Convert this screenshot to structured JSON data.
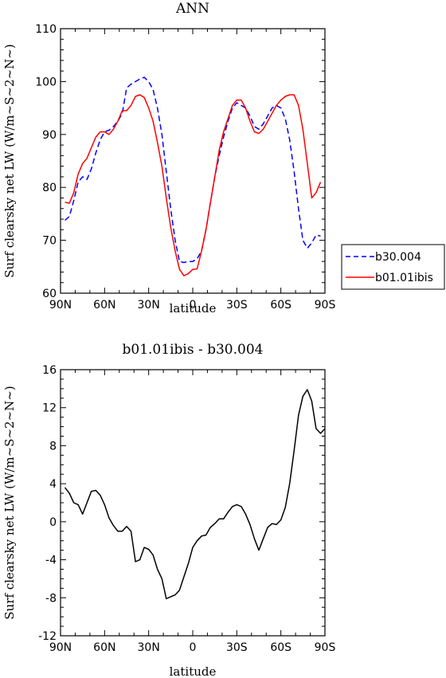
{
  "chart_data": [
    {
      "type": "line",
      "title": "ANN",
      "xlabel": "latitude",
      "ylabel": "Surf clearsky net LW (W/m~S~2~N~)",
      "x_tick_labels": [
        "90N",
        "60N",
        "30N",
        "0",
        "30S",
        "60S",
        "90S"
      ],
      "x_tick_values": [
        -90,
        -60,
        -30,
        0,
        30,
        60,
        90
      ],
      "xlim": [
        -90,
        90
      ],
      "ylim": [
        60,
        110
      ],
      "y_ticks": [
        60,
        70,
        80,
        90,
        100,
        110
      ],
      "legend_position": "right",
      "series": [
        {
          "name": "b30.004",
          "color": "#0000ff",
          "dash": "dashed",
          "x": [
            -87,
            -84,
            -81,
            -78,
            -75,
            -72,
            -69,
            -66,
            -63,
            -60,
            -57,
            -54,
            -51,
            -48,
            -45,
            -42,
            -39,
            -36,
            -33,
            -30,
            -27,
            -24,
            -21,
            -18,
            -15,
            -12,
            -9,
            -6,
            -3,
            0,
            3,
            6,
            9,
            12,
            15,
            18,
            21,
            24,
            27,
            30,
            33,
            36,
            39,
            42,
            45,
            48,
            51,
            54,
            57,
            60,
            63,
            66,
            69,
            72,
            75,
            78,
            81,
            84,
            87
          ],
          "y": [
            73.8,
            74.5,
            77.5,
            81,
            82,
            81.5,
            83.5,
            86.5,
            89,
            90.5,
            90.8,
            91.5,
            92.5,
            94,
            98.8,
            99.5,
            100,
            100.5,
            100.8,
            100,
            98.5,
            95,
            90,
            83,
            76,
            70,
            66,
            65.8,
            66,
            66,
            66.5,
            68,
            72,
            77,
            82,
            86,
            89.5,
            92.5,
            95,
            96,
            95.5,
            95,
            93.5,
            91.5,
            91,
            92,
            93.5,
            95,
            95.5,
            95,
            93,
            89,
            83,
            76,
            70,
            68.5,
            69.5,
            71,
            70.8
          ]
        },
        {
          "name": "b01.01ibis",
          "color": "#ff0000",
          "dash": "solid",
          "x": [
            -87,
            -84,
            -81,
            -78,
            -75,
            -72,
            -69,
            -66,
            -63,
            -60,
            -57,
            -54,
            -51,
            -48,
            -45,
            -42,
            -39,
            -36,
            -33,
            -30,
            -27,
            -24,
            -21,
            -18,
            -15,
            -12,
            -9,
            -6,
            -3,
            0,
            3,
            6,
            9,
            12,
            15,
            18,
            21,
            24,
            27,
            30,
            33,
            36,
            39,
            42,
            45,
            48,
            51,
            54,
            57,
            60,
            63,
            66,
            69,
            72,
            75,
            78,
            81,
            84,
            87
          ],
          "y": [
            77.2,
            77,
            79,
            82.5,
            84.5,
            85.5,
            87.5,
            89.5,
            90.5,
            90.5,
            90,
            91,
            92.5,
            94.5,
            94.5,
            95.5,
            97.2,
            97.5,
            97,
            95,
            92.5,
            88.5,
            84,
            78,
            72.5,
            68,
            64.5,
            63.3,
            63.7,
            64.5,
            64.6,
            68,
            72,
            77,
            82,
            87,
            90.5,
            93,
            95.5,
            96.5,
            96.5,
            95,
            92.5,
            90.5,
            90.2,
            91,
            92.5,
            94,
            95.5,
            96.5,
            97.2,
            97.5,
            97.5,
            95.5,
            91,
            84.5,
            78,
            79,
            81
          ]
        }
      ]
    },
    {
      "type": "line",
      "title": "b01.01ibis - b30.004",
      "xlabel": "latitude",
      "ylabel": "Surf clearsky net LW (W/m~S~2~N~)",
      "x_tick_labels": [
        "90N",
        "60N",
        "30N",
        "0",
        "30S",
        "60S",
        "90S"
      ],
      "x_tick_values": [
        -90,
        -60,
        -30,
        0,
        30,
        60,
        90
      ],
      "xlim": [
        -90,
        90
      ],
      "ylim": [
        -12,
        16
      ],
      "y_ticks": [
        -12,
        -8,
        -4,
        0,
        4,
        8,
        12,
        16
      ],
      "series": [
        {
          "color": "#000000",
          "dash": "solid",
          "x": [
            -87,
            -84,
            -81,
            -78,
            -75,
            -72,
            -69,
            -66,
            -63,
            -60,
            -57,
            -54,
            -51,
            -48,
            -45,
            -42,
            -39,
            -36,
            -33,
            -30,
            -27,
            -24,
            -21,
            -18,
            -15,
            -12,
            -9,
            -6,
            -3,
            0,
            3,
            6,
            9,
            12,
            15,
            18,
            21,
            24,
            27,
            30,
            33,
            36,
            39,
            42,
            45,
            48,
            51,
            54,
            57,
            60,
            63,
            66,
            69,
            72,
            75,
            78,
            81,
            84,
            87,
            90
          ],
          "y": [
            3.6,
            3.0,
            2.0,
            1.8,
            0.8,
            2.0,
            3.2,
            3.3,
            2.8,
            1.8,
            0.4,
            -0.4,
            -1.0,
            -1.0,
            -0.5,
            -1.0,
            -4.2,
            -4.0,
            -2.7,
            -2.9,
            -3.5,
            -5.0,
            -6.0,
            -8.1,
            -7.9,
            -7.7,
            -7.2,
            -5.8,
            -4.4,
            -2.7,
            -2.0,
            -1.5,
            -1.4,
            -0.6,
            -0.2,
            0.3,
            0.3,
            1.0,
            1.6,
            1.8,
            1.6,
            0.8,
            -0.3,
            -1.8,
            -3.0,
            -1.8,
            -0.6,
            -0.2,
            -0.3,
            0.2,
            1.5,
            4.0,
            7.5,
            11.2,
            13.2,
            13.9,
            12.7,
            9.8,
            9.3,
            9.8
          ]
        }
      ]
    }
  ]
}
